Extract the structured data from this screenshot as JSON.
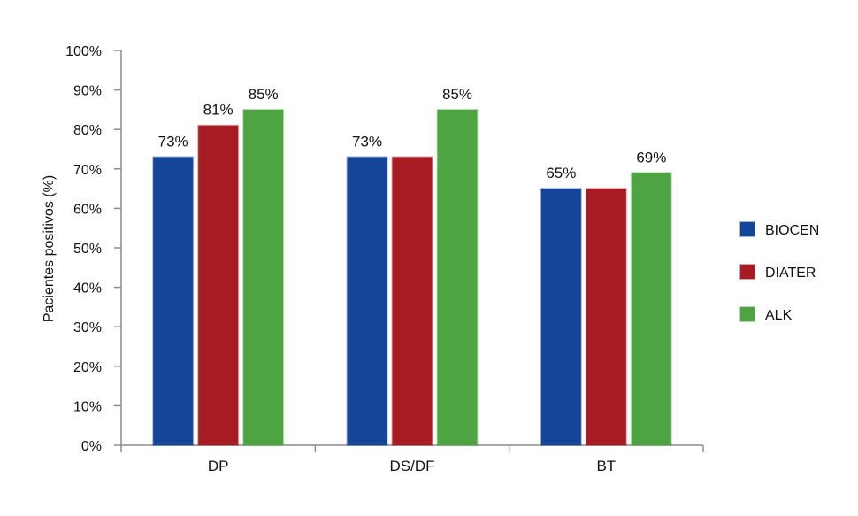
{
  "chart_data": {
    "type": "bar",
    "categories": [
      "DP",
      "DS/DF",
      "BT"
    ],
    "series": [
      {
        "name": "BIOCEN",
        "color": "#154598",
        "values": [
          73,
          73,
          65
        ]
      },
      {
        "name": "DIATER",
        "color": "#a61c22",
        "values": [
          81,
          73,
          65
        ]
      },
      {
        "name": "ALK",
        "color": "#4ea443",
        "values": [
          85,
          85,
          69
        ]
      }
    ],
    "data_labels": [
      [
        "73%",
        "81%",
        "85%"
      ],
      [
        "73%",
        "",
        "85%"
      ],
      [
        "65%",
        "",
        "69%"
      ]
    ],
    "ylabel": "Pacientes positivos (%)",
    "xlabel": "",
    "ylim": [
      0,
      100
    ],
    "yticks": [
      "0%",
      "10%",
      "20%",
      "30%",
      "40%",
      "50%",
      "60%",
      "70%",
      "80%",
      "90%",
      "100%"
    ],
    "grid": false,
    "legend_position": "right"
  }
}
